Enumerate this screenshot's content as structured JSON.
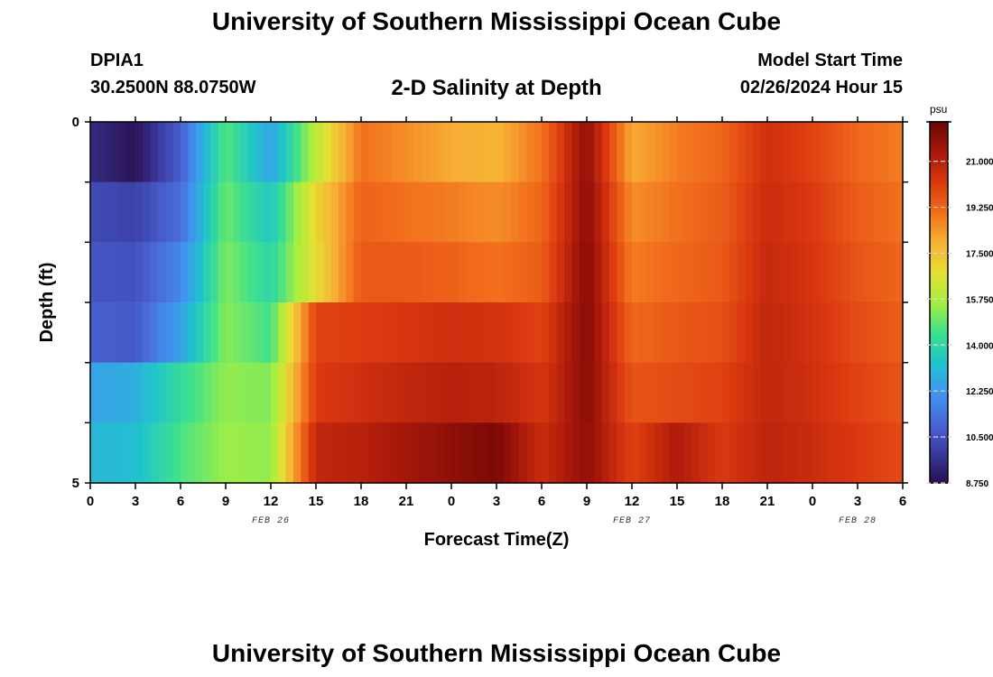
{
  "header": {
    "title": "University of Southern Mississippi Ocean Cube",
    "station_id": "DPIA1",
    "coordinates": "30.2500N  88.0750W",
    "plot_title": "2-D Salinity at Depth",
    "start_time_label": "Model Start Time",
    "start_time_value": "02/26/2024 Hour 15"
  },
  "footer": {
    "title": "University of Southern Mississippi Ocean Cube"
  },
  "colorbar": {
    "unit": "psu",
    "tick_labels": [
      "21.000",
      "19.250",
      "17.500",
      "15.750",
      "14.000",
      "12.250",
      "10.500",
      "8.750"
    ],
    "tick_values": [
      21.0,
      19.25,
      17.5,
      15.75,
      14.0,
      12.25,
      10.5,
      8.75
    ],
    "range": [
      8.75,
      22.5
    ],
    "colors": [
      "#2a0f4c",
      "#3b3aa0",
      "#4a68d8",
      "#3f97f0",
      "#1fc4cc",
      "#3ee08e",
      "#a8ef3e",
      "#e4df33",
      "#f7b035",
      "#f26d1c",
      "#db3810",
      "#a7170a",
      "#6b0505"
    ]
  },
  "chart_data": {
    "type": "heatmap",
    "title": "2-D Salinity at Depth",
    "xlabel": "Forecast Time(Z)",
    "ylabel": "Depth (ft)",
    "x_tick_labels": [
      "0",
      "3",
      "6",
      "9",
      "12",
      "15",
      "18",
      "21",
      "0",
      "3",
      "6",
      "9",
      "12",
      "15",
      "18",
      "21",
      "0",
      "3",
      "6"
    ],
    "x_range_hours": [
      0,
      54
    ],
    "date_labels": [
      {
        "text": "FEB 26",
        "at_hour": 12
      },
      {
        "text": "FEB 27",
        "at_hour": 36
      },
      {
        "text": "FEB 28",
        "at_hour": 51
      }
    ],
    "y_tick_labels": [
      "0",
      "5"
    ],
    "y_range": [
      0,
      5
    ],
    "depth_layers": [
      0,
      1,
      2,
      3,
      4,
      5
    ],
    "hours": [
      0,
      3,
      6,
      9,
      12,
      15,
      18,
      21,
      24,
      27,
      30,
      33,
      36,
      39,
      42,
      45,
      48,
      51,
      54
    ],
    "salinity": [
      [
        9.5,
        8.9,
        10.8,
        14.8,
        12.5,
        16.0,
        19.0,
        18.5,
        18.0,
        17.8,
        19.0,
        21.8,
        18.0,
        18.8,
        19.2,
        20.5,
        20.0,
        19.2,
        18.8
      ],
      [
        10.3,
        10.1,
        11.2,
        15.0,
        13.5,
        17.0,
        19.3,
        19.0,
        18.8,
        18.5,
        19.2,
        21.9,
        18.5,
        19.0,
        19.4,
        20.6,
        20.2,
        19.4,
        19.0
      ],
      [
        10.6,
        10.5,
        11.8,
        15.2,
        14.0,
        16.8,
        19.5,
        19.5,
        19.3,
        19.0,
        19.4,
        22.0,
        18.8,
        19.2,
        19.5,
        20.7,
        20.3,
        19.6,
        19.2
      ],
      [
        10.8,
        10.7,
        12.5,
        15.3,
        14.5,
        20.0,
        20.1,
        20.3,
        20.5,
        20.4,
        20.0,
        22.0,
        19.2,
        19.5,
        19.7,
        20.8,
        20.4,
        19.8,
        19.4
      ],
      [
        12.5,
        12.8,
        14.2,
        15.4,
        15.2,
        20.2,
        20.5,
        20.8,
        21.0,
        20.9,
        20.3,
        21.9,
        19.6,
        19.8,
        20.0,
        20.8,
        20.5,
        20.0,
        19.6
      ],
      [
        13.0,
        13.2,
        14.6,
        15.5,
        15.4,
        20.8,
        21.0,
        21.4,
        21.8,
        22.2,
        20.6,
        21.8,
        20.0,
        21.2,
        20.2,
        20.9,
        20.6,
        20.2,
        19.8
      ]
    ]
  }
}
